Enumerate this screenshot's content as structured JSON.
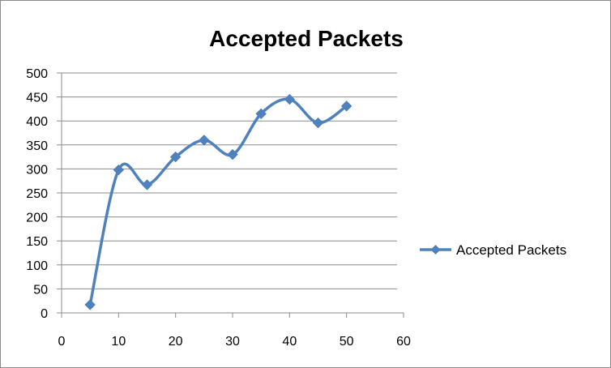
{
  "chart_data": {
    "type": "line",
    "title": "Accepted Packets",
    "xlabel": "",
    "ylabel": "",
    "xlim": [
      0,
      60
    ],
    "ylim": [
      0,
      500
    ],
    "x_ticks": [
      0,
      10,
      20,
      30,
      40,
      50,
      60
    ],
    "y_ticks": [
      0,
      50,
      100,
      150,
      200,
      250,
      300,
      350,
      400,
      450,
      500
    ],
    "grid": "horizontal major gridlines",
    "smoothed": true,
    "marker": "diamond",
    "legend_position": "right",
    "series": [
      {
        "name": "Accepted Packets",
        "color": "#4f81bd",
        "x": [
          5,
          10,
          15,
          20,
          25,
          30,
          35,
          40,
          45,
          50
        ],
        "y": [
          17,
          298,
          267,
          325,
          360,
          330,
          415,
          445,
          396,
          431
        ]
      }
    ]
  }
}
